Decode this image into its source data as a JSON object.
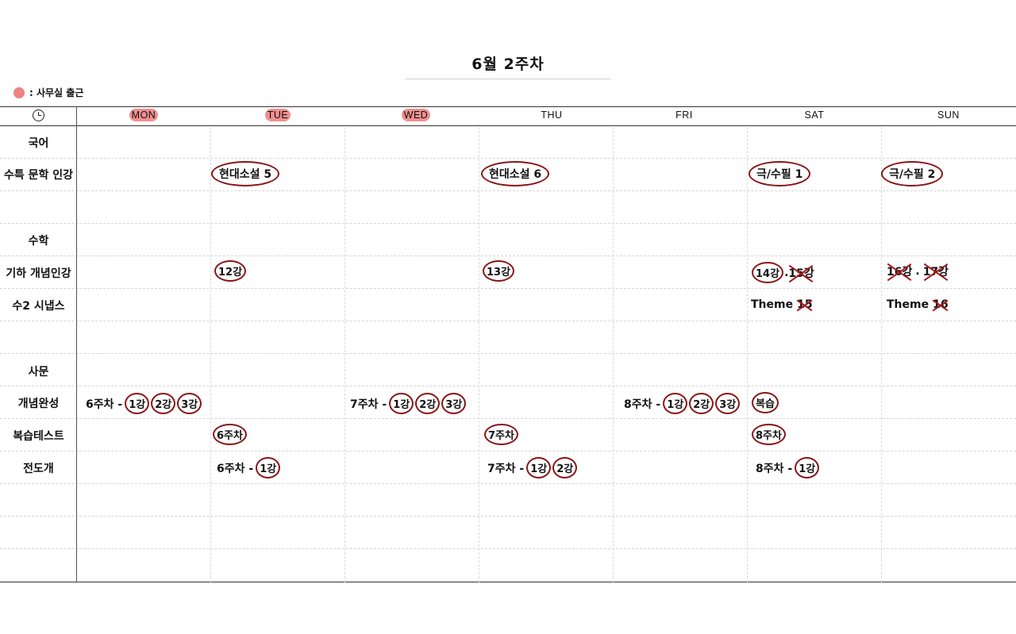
{
  "title": "6월 2주차",
  "legend": {
    "label": ": 사무실 출근",
    "color": "#f08181"
  },
  "days": [
    {
      "label": "MON",
      "highlighted": true
    },
    {
      "label": "TUE",
      "highlighted": true
    },
    {
      "label": "WED",
      "highlighted": true
    },
    {
      "label": "THU",
      "highlighted": false
    },
    {
      "label": "FRI",
      "highlighted": false
    },
    {
      "label": "SAT",
      "highlighted": false
    },
    {
      "label": "SUN",
      "highlighted": false
    }
  ],
  "rows": {
    "korean": "국어",
    "korean_lit": "수특 문학 인강",
    "math": "수학",
    "math_geo": "기하 개념인강",
    "math_su2": "수2 시냅스",
    "social": "사문",
    "social_concept": "개념완성",
    "social_review": "복습테스트",
    "social_jeon": "전도개"
  },
  "cells": {
    "lit_tue": "현대소설 5",
    "lit_thu": "현대소설 6",
    "lit_sat": "극/수필 1",
    "lit_sun": "극/수필 2",
    "geo_tue": "12강",
    "geo_thu": "13강",
    "geo_sat_a": "14강",
    "geo_sat_sep": ".",
    "geo_sat_b": "15강",
    "geo_sun_a": "16강",
    "geo_sun_sep": ".",
    "geo_sun_b": "17강",
    "su2_sat_a": "Theme",
    "su2_sat_b": "15",
    "su2_sun_a": "Theme",
    "su2_sun_b": "16",
    "concept_mon_pre": "6주차 -",
    "concept_mon_1": "1강",
    "concept_mon_2": "2강",
    "concept_mon_3": "3강",
    "concept_wed_pre": "7주차 -",
    "concept_wed_1": "1강",
    "concept_wed_2": "2강",
    "concept_wed_3": "3강",
    "concept_fri_pre": "8주차 -",
    "concept_fri_1": "1강",
    "concept_fri_2": "2강",
    "concept_fri_3": "3강",
    "concept_sat": "복습",
    "review_tue": "6주차",
    "review_thu": "7주차",
    "review_sat": "8주차",
    "jeon_tue_pre": "6주차 -",
    "jeon_tue_1": "1강",
    "jeon_thu_pre": "7주차 -",
    "jeon_thu_1": "1강",
    "jeon_thu_2": "2강",
    "jeon_sat_pre": "8주차 -",
    "jeon_sat_1": "1강"
  }
}
